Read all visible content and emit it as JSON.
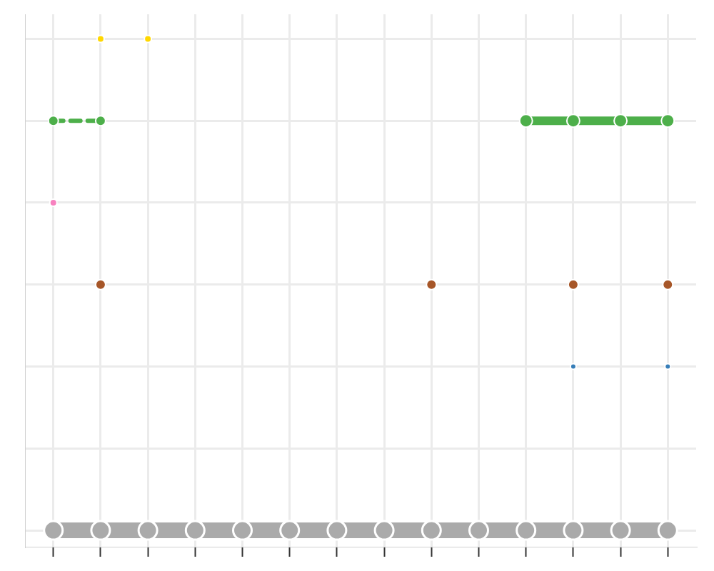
{
  "chart_data": {
    "type": "scatter",
    "xlim": [
      0.4,
      14.6
    ],
    "ylim": [
      -0.2,
      6.3
    ],
    "xticks": [
      1,
      2,
      3,
      4,
      5,
      6,
      7,
      8,
      9,
      10,
      11,
      12,
      13,
      14
    ],
    "yticks": [
      0,
      1,
      2,
      3,
      4,
      5,
      6
    ],
    "grid": true,
    "tick_labels": false,
    "series": [
      {
        "color": "#aaaaaa",
        "marker": "circle",
        "line_style": "solid",
        "x": [
          1,
          2,
          3,
          4,
          5,
          6,
          7,
          8,
          9,
          10,
          11,
          12,
          13,
          14
        ],
        "values": [
          0,
          0,
          0,
          0,
          0,
          0,
          0,
          0,
          0,
          0,
          0,
          0,
          0,
          0
        ]
      },
      {
        "color": "#4daf4a",
        "marker": "circle",
        "line_style": "dashed",
        "x": [
          1,
          2
        ],
        "values": [
          5,
          5
        ]
      },
      {
        "color": "#4daf4a",
        "marker": "circle",
        "line_style": "solid",
        "x": [
          11,
          12,
          13,
          14
        ],
        "values": [
          5,
          5,
          5,
          5
        ]
      },
      {
        "color": "#ffd700",
        "marker": "circle",
        "line_style": "none",
        "x": [
          2,
          3
        ],
        "values": [
          6,
          6
        ]
      },
      {
        "color": "#f781bf",
        "marker": "circle",
        "line_style": "none",
        "x": [
          1
        ],
        "values": [
          4
        ]
      },
      {
        "color": "#a65628",
        "marker": "circle",
        "line_style": "none",
        "x": [
          2,
          9,
          12,
          14
        ],
        "values": [
          3,
          3,
          3,
          3
        ]
      },
      {
        "color": "#377eb8",
        "marker": "circle",
        "line_style": "none",
        "x": [
          12,
          14
        ],
        "values": [
          2,
          2
        ]
      }
    ]
  }
}
